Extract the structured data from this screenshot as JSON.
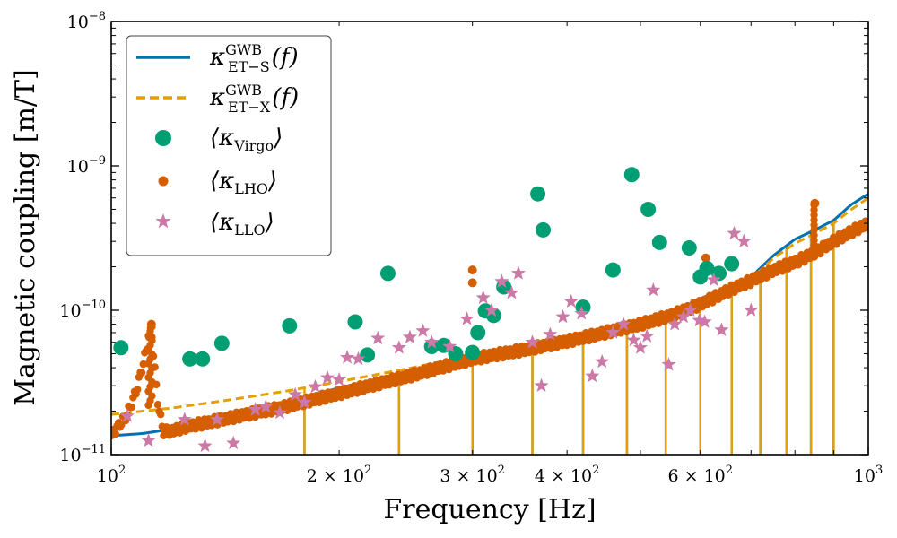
{
  "chart_data": {
    "type": "scatter",
    "xlabel": "Frequency [Hz]",
    "ylabel": "Magnetic coupling [m/T]",
    "xscale": "log",
    "yscale": "log",
    "xlim": [
      100,
      1000
    ],
    "ylim": [
      1e-11,
      1e-08
    ],
    "grid": false,
    "legend_position": "top-left",
    "x_tick_labels": [
      {
        "value": 100,
        "base": "10",
        "exp": "2"
      },
      {
        "value": 200,
        "base": "2 × 10",
        "exp": "2"
      },
      {
        "value": 300,
        "base": "3 × 10",
        "exp": "2"
      },
      {
        "value": 400,
        "base": "4 × 10",
        "exp": "2"
      },
      {
        "value": 600,
        "base": "6 × 10",
        "exp": "2"
      },
      {
        "value": 1000,
        "base": "10",
        "exp": "3"
      }
    ],
    "y_tick_labels": [
      {
        "value": 1e-11,
        "base": "10",
        "exp": "−11"
      },
      {
        "value": 1e-10,
        "base": "10",
        "exp": "−10"
      },
      {
        "value": 1e-09,
        "base": "10",
        "exp": "−9"
      },
      {
        "value": 1e-08,
        "base": "10",
        "exp": "−8"
      }
    ],
    "series": [
      {
        "name": "κ GWB ET−S (f)",
        "legend_symbol": "κ",
        "legend_sup": "GWB",
        "legend_sub": "ET−S",
        "legend_suffix": "(f)",
        "kind": "line",
        "style": "solid",
        "color": "#0072B2",
        "x": [
          100,
          110,
          115,
          120,
          140,
          170,
          200,
          250,
          300,
          350,
          400,
          450,
          500,
          550,
          600,
          650,
          700,
          750,
          800,
          850,
          900,
          950,
          1000
        ],
        "y": [
          1.35e-11,
          1.4e-11,
          1.45e-11,
          1.5e-11,
          1.8e-11,
          2.3e-11,
          2.9e-11,
          3.8e-11,
          4.8e-11,
          5.5e-11,
          6.3e-11,
          7.2e-11,
          8.2e-11,
          9.5e-11,
          1.2e-10,
          1.45e-10,
          1.7e-10,
          2.4e-10,
          3.1e-10,
          3.6e-10,
          4.2e-10,
          5.4e-10,
          6.4e-10
        ],
        "dips": [
          180,
          240,
          300,
          360,
          420,
          480,
          540,
          600,
          660,
          720,
          780,
          840,
          900
        ]
      },
      {
        "name": "κ GWB ET−X (f)",
        "legend_symbol": "κ",
        "legend_sup": "GWB",
        "legend_sub": "ET−X",
        "legend_suffix": "(f)",
        "kind": "line",
        "style": "dashed",
        "color": "#E69F00",
        "x": [
          100,
          110,
          120,
          140,
          170,
          200,
          250,
          300,
          350,
          400,
          450,
          500,
          550,
          600,
          650,
          700,
          750,
          800,
          850,
          900,
          950,
          1000
        ],
        "y": [
          1.9e-11,
          2e-11,
          2.1e-11,
          2.35e-11,
          2.75e-11,
          3.2e-11,
          4e-11,
          4.9e-11,
          5.6e-11,
          6.4e-11,
          7.2e-11,
          8.1e-11,
          9.3e-11,
          1.15e-10,
          1.4e-10,
          1.65e-10,
          2.3e-10,
          2.9e-10,
          3.4e-10,
          4e-10,
          5e-10,
          6e-10
        ],
        "dips": [
          180,
          240,
          300,
          360,
          420,
          480,
          540,
          600,
          660,
          720,
          780,
          840,
          900
        ]
      },
      {
        "name": "⟨κ Virgo⟩",
        "legend_symbol": "⟨κ",
        "legend_sub": "Virgo",
        "legend_suffix": "⟩",
        "kind": "scatter",
        "marker": "circle",
        "color": "#009E73",
        "x": [
          103,
          127,
          132,
          140,
          172,
          210,
          218,
          232,
          265,
          275,
          285,
          300,
          305,
          312,
          320,
          330,
          366,
          372,
          420,
          460,
          487,
          512,
          530,
          580,
          600,
          612,
          635,
          660
        ],
        "y": [
          5.5e-11,
          4.6e-11,
          4.6e-11,
          5.9e-11,
          7.8e-11,
          8.3e-11,
          4.9e-11,
          1.8e-10,
          5.6e-11,
          5.7e-11,
          5e-11,
          5.1e-11,
          7e-11,
          9.9e-11,
          9.2e-11,
          1.45e-10,
          6.4e-10,
          3.6e-10,
          1.05e-10,
          1.9e-10,
          8.7e-10,
          5e-10,
          2.95e-10,
          2.7e-10,
          1.7e-10,
          1.95e-10,
          1.8e-10,
          2.1e-10
        ]
      },
      {
        "name": "⟨κ LHO⟩",
        "legend_symbol": "⟨κ",
        "legend_sub": "LHO",
        "legend_suffix": "⟩",
        "kind": "scatter",
        "marker": "dot-dense",
        "color": "#D55E00",
        "x": [
          113,
          300,
          300,
          610,
          850
        ],
        "y": [
          8e-11,
          1.9e-10,
          1.55e-10,
          2.3e-10,
          5.5e-10
        ],
        "trend_x": [
          100,
          105,
          108,
          111,
          113,
          115,
          117,
          120,
          125,
          140,
          170,
          200,
          250,
          300,
          350,
          400,
          450,
          500,
          550,
          600,
          650,
          700,
          750,
          800,
          850,
          900,
          950,
          1000
        ],
        "trend_y": [
          1.35e-11,
          1.9e-11,
          2.8e-11,
          5e-11,
          7.5e-11,
          2.5e-11,
          1.45e-11,
          1.45e-11,
          1.55e-11,
          1.75e-11,
          2.15e-11,
          2.65e-11,
          3.55e-11,
          4.6e-11,
          5.3e-11,
          6.1e-11,
          7e-11,
          8e-11,
          9.2e-11,
          1.1e-10,
          1.35e-10,
          1.6e-10,
          1.9e-10,
          2.15e-10,
          2.5e-10,
          3e-10,
          3.5e-10,
          4e-10
        ]
      },
      {
        "name": "⟨κ LLO⟩",
        "legend_symbol": "⟨κ",
        "legend_sub": "LLO",
        "legend_suffix": "⟩",
        "kind": "scatter",
        "marker": "star",
        "color": "#CC79A7",
        "x": [
          105,
          112,
          125,
          133,
          138,
          145,
          155,
          160,
          167,
          175,
          180,
          186,
          193,
          200,
          205,
          212,
          225,
          240,
          248,
          258,
          265,
          280,
          295,
          310,
          318,
          328,
          338,
          345,
          360,
          370,
          380,
          395,
          405,
          418,
          432,
          445,
          460,
          475,
          490,
          500,
          510,
          520,
          545,
          555,
          570,
          582,
          598,
          608,
          625,
          640,
          665,
          685,
          700
        ],
        "y": [
          1.85e-11,
          1.25e-11,
          1.75e-11,
          1.15e-11,
          1.75e-11,
          1.2e-11,
          2.05e-11,
          2.15e-11,
          1.95e-11,
          2.6e-11,
          2.3e-11,
          2.95e-11,
          3.4e-11,
          3.3e-11,
          4.7e-11,
          4.6e-11,
          6.4e-11,
          5.5e-11,
          6.5e-11,
          7.2e-11,
          6e-11,
          5.6e-11,
          8.7e-11,
          1.22e-10,
          1e-10,
          1.58e-10,
          1.32e-10,
          1.8e-10,
          6e-11,
          3e-11,
          6.8e-11,
          9e-11,
          1.15e-10,
          9.5e-11,
          3.5e-11,
          4.4e-11,
          7e-11,
          8e-11,
          6.2e-11,
          5.5e-11,
          6.6e-11,
          1.38e-10,
          4.2e-11,
          8e-11,
          9e-11,
          1e-10,
          8.5e-11,
          8.3e-11,
          1.62e-10,
          7.3e-11,
          3.4e-10,
          3e-10,
          1e-10
        ]
      }
    ]
  }
}
